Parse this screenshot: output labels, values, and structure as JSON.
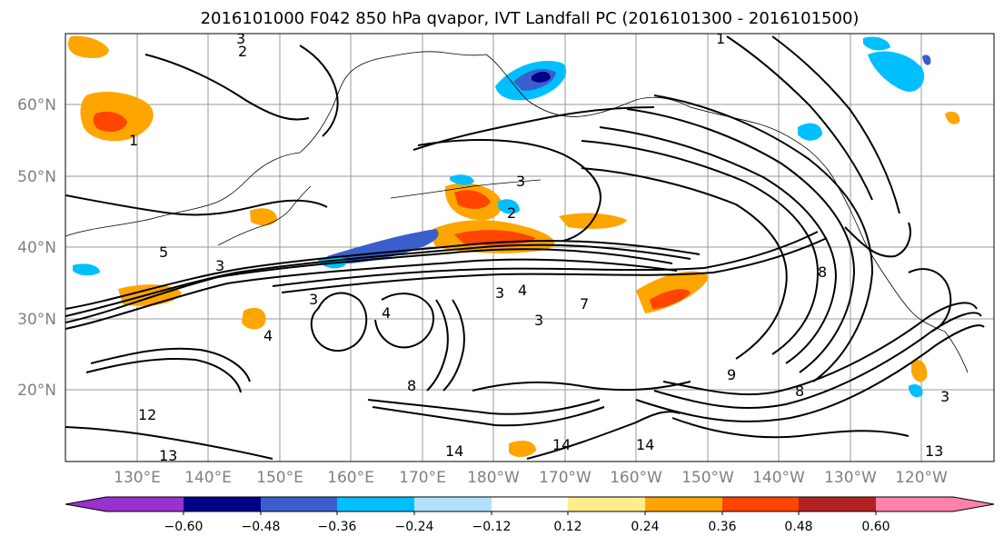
{
  "title": "2016101000 F042 850 hPa qvapor, IVT Landfall PC (2016101300 - 2016101500)",
  "map": {
    "lat_ticks": [
      "60°N",
      "50°N",
      "40°N",
      "30°N",
      "20°N"
    ],
    "lon_ticks": [
      "130°E",
      "140°E",
      "150°E",
      "160°E",
      "170°E",
      "180°W",
      "170°W",
      "160°W",
      "150°W",
      "140°W",
      "130°W",
      "120°W"
    ],
    "contour_labels": [
      "3",
      "2",
      "1",
      "5",
      "3",
      "2",
      "3",
      "8",
      "3",
      "7",
      "3",
      "4",
      "3",
      "4",
      "4",
      "12",
      "8",
      "13",
      "14",
      "14",
      "14",
      "13",
      "9",
      "8",
      "1",
      "3"
    ]
  },
  "colorbar": {
    "tick_labels": [
      "−0.60",
      "−0.48",
      "−0.36",
      "−0.24",
      "−0.12",
      "0.12",
      "0.24",
      "0.36",
      "0.48",
      "0.60"
    ],
    "colors": [
      "#9932cc",
      "#00008b",
      "#3a5fcd",
      "#00bfff",
      "#b0e2ff",
      "#ffffff",
      "#ffec8b",
      "#ffa500",
      "#ff4500",
      "#b22222",
      "#ff82ab"
    ]
  }
}
